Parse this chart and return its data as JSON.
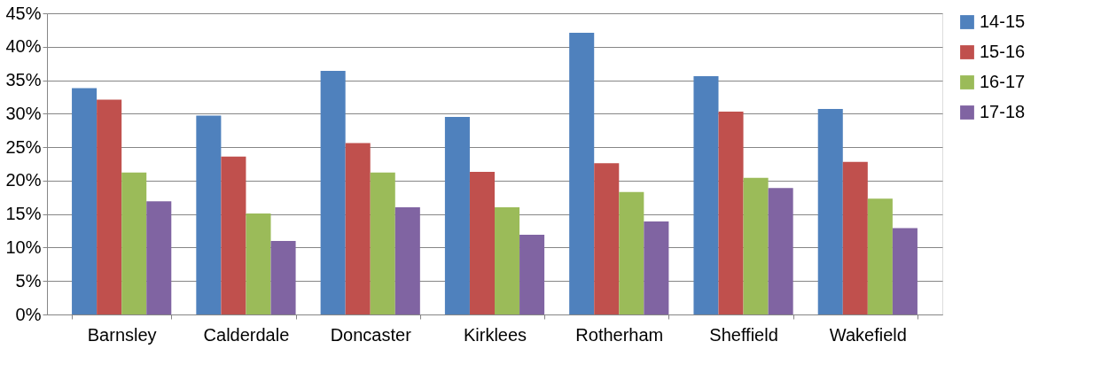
{
  "chart_data": {
    "type": "bar",
    "categories": [
      "Barnsley",
      "Calderdale",
      "Doncaster",
      "Kirklees",
      "Rotherham",
      "Sheffield",
      "Wakefield"
    ],
    "series": [
      {
        "name": "14-15",
        "color": "#4f81bd",
        "values": [
          33.8,
          29.7,
          36.4,
          29.5,
          42.1,
          35.6,
          30.7
        ]
      },
      {
        "name": "15-16",
        "color": "#c0504d",
        "values": [
          32.1,
          23.6,
          25.6,
          21.3,
          22.6,
          30.3,
          22.8
        ]
      },
      {
        "name": "16-17",
        "color": "#9bbb59",
        "values": [
          21.2,
          15.1,
          21.2,
          16.0,
          18.3,
          20.4,
          17.3
        ]
      },
      {
        "name": "17-18",
        "color": "#8064a2",
        "values": [
          16.9,
          11.0,
          16.0,
          11.9,
          13.9,
          18.9,
          12.9
        ]
      }
    ],
    "ylim": [
      0,
      45
    ],
    "yticks": [
      {
        "value": 0,
        "label": "0%"
      },
      {
        "value": 5,
        "label": "5%"
      },
      {
        "value": 10,
        "label": "10%"
      },
      {
        "value": 15,
        "label": "15%"
      },
      {
        "value": 20,
        "label": "20%"
      },
      {
        "value": 25,
        "label": "25%"
      },
      {
        "value": 30,
        "label": "30%"
      },
      {
        "value": 35,
        "label": "35%"
      },
      {
        "value": 40,
        "label": "40%"
      },
      {
        "value": 45,
        "label": "45%"
      }
    ],
    "grid": "y",
    "legend": "right"
  }
}
